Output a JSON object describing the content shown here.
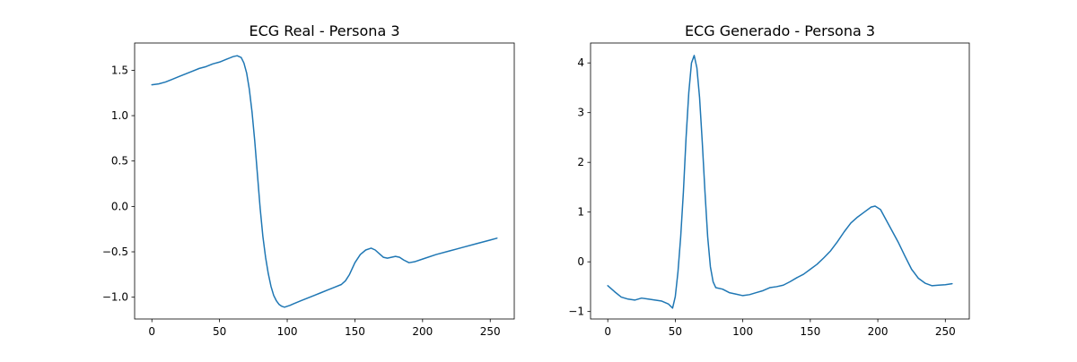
{
  "chart_data": [
    {
      "type": "line",
      "title": "ECG Real - Persona 3",
      "xlabel": "",
      "ylabel": "",
      "xlim": [
        -12.75,
        267.75
      ],
      "ylim": [
        -1.24,
        1.8
      ],
      "xticks": [
        0,
        50,
        100,
        150,
        200,
        250
      ],
      "yticks": [
        -1.0,
        -0.5,
        0.0,
        0.5,
        1.0,
        1.5
      ],
      "ytick_labels": [
        "−1.0",
        "−0.5",
        "0.0",
        "0.5",
        "1.0",
        "1.5"
      ],
      "grid": false,
      "color": "#1f77b4",
      "series": [
        {
          "x": [
            0,
            5,
            10,
            15,
            20,
            25,
            30,
            35,
            40,
            45,
            50,
            55,
            60,
            63,
            66,
            68,
            70,
            72,
            74,
            76,
            78,
            80,
            82,
            84,
            86,
            88,
            90,
            92,
            94,
            96,
            98,
            100,
            102,
            105,
            110,
            115,
            120,
            125,
            130,
            135,
            140,
            143,
            146,
            150,
            154,
            158,
            162,
            165,
            168,
            171,
            174,
            177,
            180,
            183,
            186,
            190,
            194,
            200,
            210,
            220,
            230,
            240,
            250,
            255
          ],
          "y": [
            1.34,
            1.35,
            1.37,
            1.4,
            1.43,
            1.46,
            1.49,
            1.52,
            1.54,
            1.57,
            1.59,
            1.62,
            1.65,
            1.66,
            1.64,
            1.58,
            1.47,
            1.29,
            1.04,
            0.72,
            0.35,
            -0.02,
            -0.33,
            -0.56,
            -0.74,
            -0.88,
            -0.98,
            -1.04,
            -1.08,
            -1.1,
            -1.11,
            -1.1,
            -1.09,
            -1.07,
            -1.04,
            -1.01,
            -0.98,
            -0.95,
            -0.92,
            -0.89,
            -0.86,
            -0.82,
            -0.75,
            -0.62,
            -0.53,
            -0.48,
            -0.46,
            -0.48,
            -0.52,
            -0.56,
            -0.57,
            -0.56,
            -0.55,
            -0.56,
            -0.59,
            -0.62,
            -0.61,
            -0.58,
            -0.53,
            -0.49,
            -0.45,
            -0.41,
            -0.37,
            -0.35
          ]
        }
      ]
    },
    {
      "type": "line",
      "title": "ECG Generado - Persona 3",
      "xlabel": "",
      "ylabel": "",
      "xlim": [
        -12.75,
        267.75
      ],
      "ylim": [
        -1.15,
        4.4
      ],
      "xticks": [
        0,
        50,
        100,
        150,
        200,
        250
      ],
      "yticks": [
        -1,
        0,
        1,
        2,
        3,
        4
      ],
      "ytick_labels": [
        "−1",
        "0",
        "1",
        "2",
        "3",
        "4"
      ],
      "grid": false,
      "color": "#1f77b4",
      "series": [
        {
          "x": [
            0,
            5,
            10,
            15,
            20,
            25,
            30,
            35,
            40,
            45,
            48,
            50,
            52,
            54,
            56,
            58,
            60,
            62,
            64,
            66,
            68,
            70,
            72,
            74,
            76,
            78,
            80,
            85,
            90,
            95,
            100,
            105,
            110,
            115,
            120,
            125,
            130,
            135,
            140,
            145,
            150,
            155,
            160,
            165,
            170,
            175,
            180,
            185,
            190,
            195,
            198,
            202,
            205,
            210,
            215,
            220,
            225,
            230,
            235,
            240,
            245,
            250,
            255
          ],
          "y": [
            -0.48,
            -0.6,
            -0.71,
            -0.75,
            -0.77,
            -0.73,
            -0.75,
            -0.77,
            -0.79,
            -0.85,
            -0.93,
            -0.7,
            -0.2,
            0.5,
            1.4,
            2.5,
            3.4,
            4.0,
            4.15,
            3.9,
            3.3,
            2.4,
            1.4,
            0.5,
            -0.1,
            -0.4,
            -0.52,
            -0.55,
            -0.62,
            -0.65,
            -0.68,
            -0.66,
            -0.62,
            -0.58,
            -0.52,
            -0.5,
            -0.47,
            -0.4,
            -0.32,
            -0.25,
            -0.15,
            -0.05,
            0.08,
            0.22,
            0.4,
            0.6,
            0.78,
            0.9,
            1.0,
            1.1,
            1.12,
            1.05,
            0.9,
            0.65,
            0.4,
            0.12,
            -0.15,
            -0.33,
            -0.43,
            -0.48,
            -0.47,
            -0.46,
            -0.44
          ]
        }
      ]
    }
  ]
}
